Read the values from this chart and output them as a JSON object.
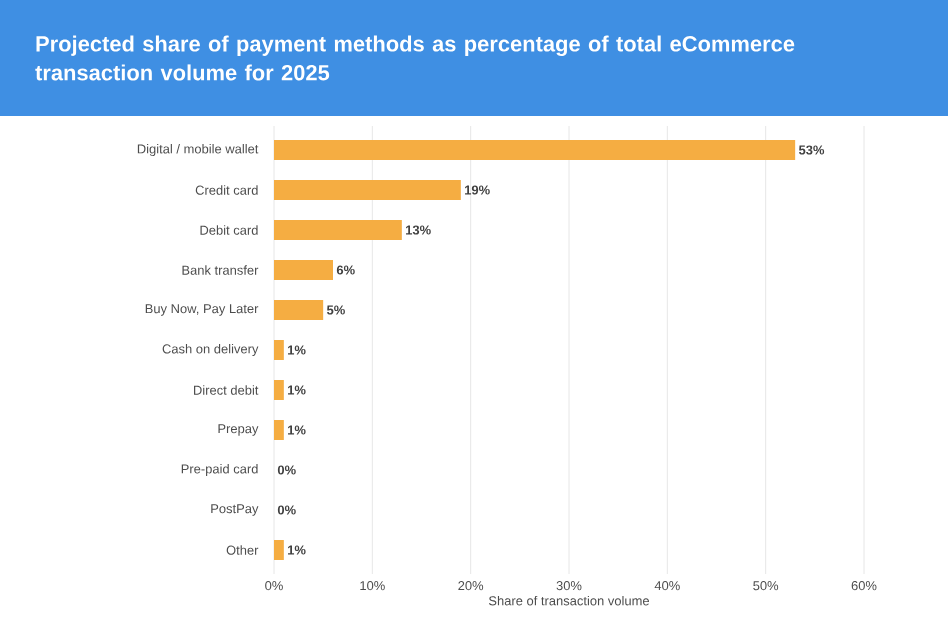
{
  "chart_data": {
    "type": "bar",
    "orientation": "horizontal",
    "title": "Projected share of payment methods as percentage of total eCommerce transaction volume for 2025",
    "xlabel": "Share of transaction volume",
    "categories": [
      "Digital / mobile wallet",
      "Credit card",
      "Debit card",
      "Bank transfer",
      "Buy Now, Pay Later",
      "Cash on delivery",
      "Direct debit",
      "Prepay",
      "Pre-paid card",
      "PostPay",
      "Other"
    ],
    "values": [
      53,
      19,
      13,
      6,
      5,
      1,
      1,
      1,
      0,
      0,
      1
    ],
    "value_labels": [
      "53%",
      "19%",
      "13%",
      "6%",
      "5%",
      "1%",
      "1%",
      "1%",
      "0%",
      "0%",
      "1%"
    ],
    "color": "#f5ad42",
    "xlim": [
      0,
      60
    ],
    "xticks": [
      {
        "value": 0,
        "label": "0%"
      },
      {
        "value": 10,
        "label": "10%"
      },
      {
        "value": 20,
        "label": "20%"
      },
      {
        "value": 30,
        "label": "30%"
      },
      {
        "value": 40,
        "label": "40%"
      },
      {
        "value": 50,
        "label": "50%"
      },
      {
        "value": 60,
        "label": "60%"
      }
    ],
    "grid": "x"
  }
}
